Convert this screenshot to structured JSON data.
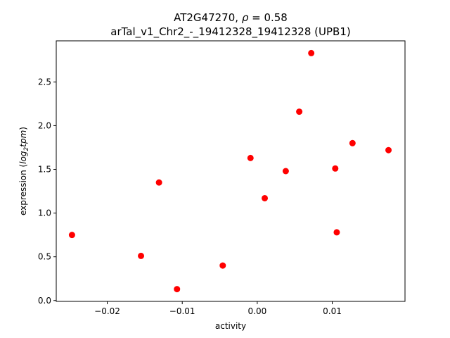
{
  "chart_data": {
    "type": "scatter",
    "title_line1_prefix": "AT2G47270, ",
    "title_line1_rho": "ρ",
    "title_line1_suffix": " = 0.58",
    "title_line2": "arTal_v1_Chr2_-_19412328_19412328 (UPB1)",
    "xlabel": "activity",
    "ylabel_prefix": "expression (",
    "ylabel_italic": "log",
    "ylabel_sub": "2",
    "ylabel_italic2": "tpm",
    "ylabel_suffix": ")",
    "xlim": [
      -0.0268,
      0.0197
    ],
    "ylim": [
      -0.01,
      2.97
    ],
    "x_ticks": [
      {
        "value": -0.02,
        "label": "−0.02"
      },
      {
        "value": -0.01,
        "label": "−0.01"
      },
      {
        "value": 0.0,
        "label": "0.00"
      },
      {
        "value": 0.01,
        "label": "0.01"
      }
    ],
    "y_ticks": [
      {
        "value": 0.0,
        "label": "0.0"
      },
      {
        "value": 0.5,
        "label": "0.5"
      },
      {
        "value": 1.0,
        "label": "1.0"
      },
      {
        "value": 1.5,
        "label": "1.5"
      },
      {
        "value": 2.0,
        "label": "2.0"
      },
      {
        "value": 2.5,
        "label": "2.5"
      }
    ],
    "point_color": "#ff0000",
    "grid": false,
    "points": [
      {
        "x": -0.0247,
        "y": 0.75
      },
      {
        "x": -0.0155,
        "y": 0.51
      },
      {
        "x": -0.0131,
        "y": 1.35
      },
      {
        "x": -0.0107,
        "y": 0.13
      },
      {
        "x": -0.0046,
        "y": 0.4
      },
      {
        "x": -0.0009,
        "y": 1.63
      },
      {
        "x": 0.001,
        "y": 1.17
      },
      {
        "x": 0.0038,
        "y": 1.48
      },
      {
        "x": 0.0056,
        "y": 2.16
      },
      {
        "x": 0.0072,
        "y": 2.83
      },
      {
        "x": 0.0104,
        "y": 1.51
      },
      {
        "x": 0.0106,
        "y": 0.78
      },
      {
        "x": 0.0127,
        "y": 1.8
      },
      {
        "x": 0.0175,
        "y": 1.72
      }
    ]
  }
}
